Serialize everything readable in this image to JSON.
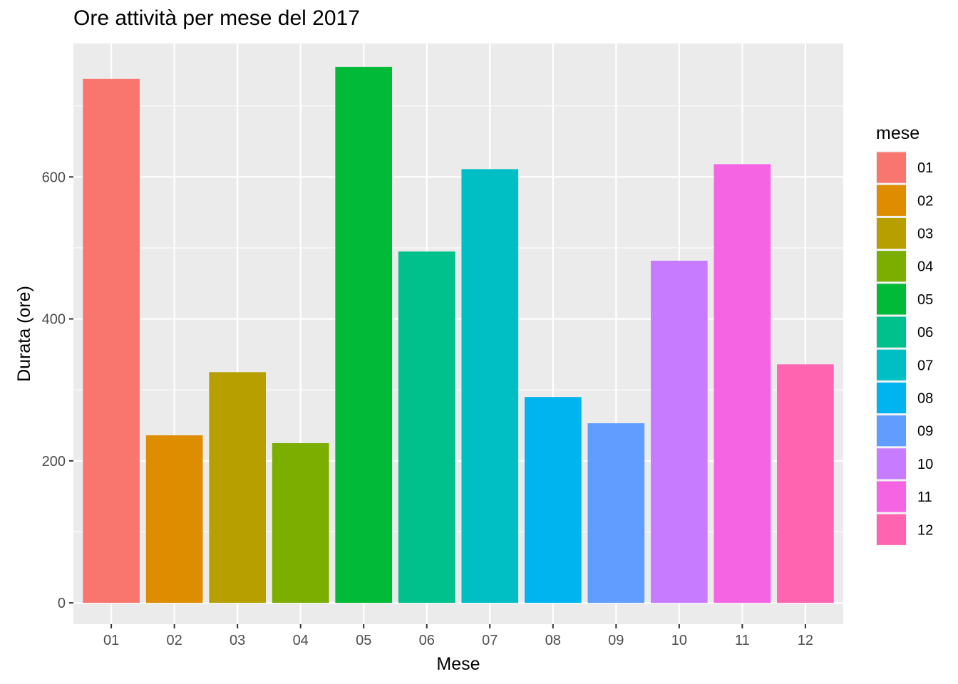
{
  "chart_data": {
    "type": "bar",
    "title": "Ore attività per mese del 2017",
    "xlabel": "Mese",
    "ylabel": "Durata (ore)",
    "categories": [
      "01",
      "02",
      "03",
      "04",
      "05",
      "06",
      "07",
      "08",
      "09",
      "10",
      "11",
      "12"
    ],
    "values": [
      738,
      236,
      325,
      225,
      755,
      495,
      611,
      290,
      253,
      482,
      618,
      336
    ],
    "ylim": [
      -30,
      788
    ],
    "yticks": [
      0,
      200,
      400,
      600
    ],
    "grid": true,
    "legend": {
      "title": "mese",
      "position": "right",
      "entries": [
        "01",
        "02",
        "03",
        "04",
        "05",
        "06",
        "07",
        "08",
        "09",
        "10",
        "11",
        "12"
      ]
    },
    "colors": [
      "#F8766D",
      "#DE8C00",
      "#B79F00",
      "#7CAE00",
      "#00BA38",
      "#00C08B",
      "#00BFC4",
      "#00B4F0",
      "#619CFF",
      "#C77CFF",
      "#F564E3",
      "#FF64B0"
    ],
    "panel_background": "#EBEBEB",
    "grid_color": "#FFFFFF"
  }
}
